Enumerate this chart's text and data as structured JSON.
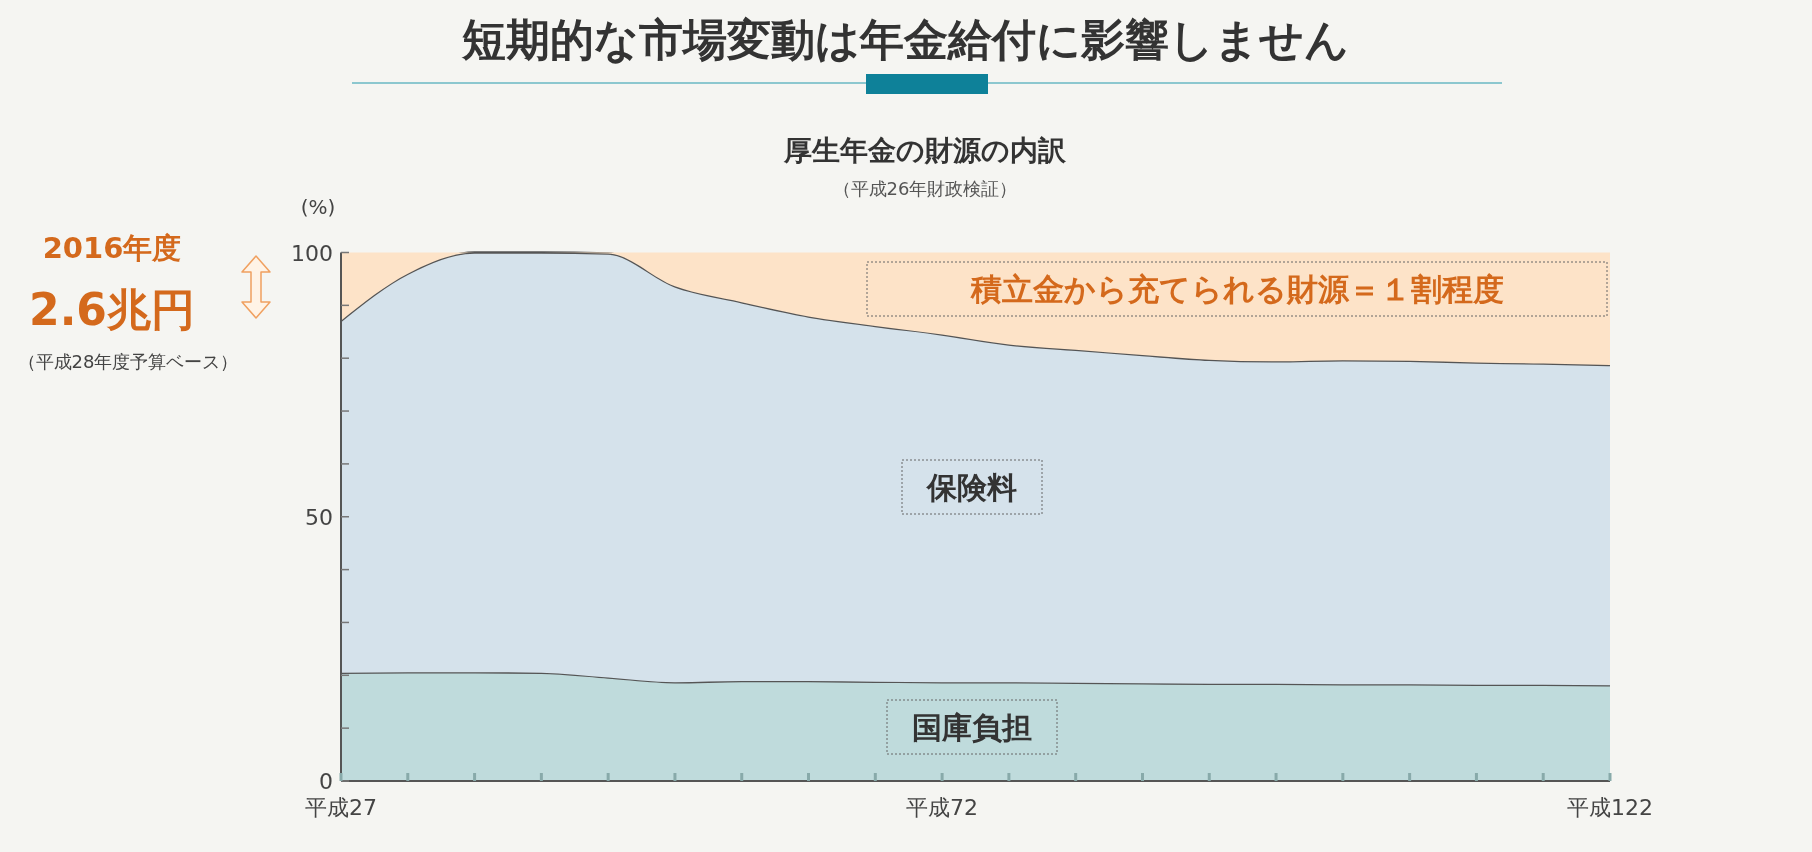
{
  "chart_data": {
    "type": "area",
    "stacked": true,
    "title": "短期的な市場変動は年金給付に影響しません",
    "subtitle": "厚生年金の財源の内訳",
    "ylabel": "(%)",
    "annotations": [
      "（平成26年財政検証）",
      "2016年度",
      "2.6兆円",
      "（平成28年度予算ベース）"
    ],
    "categories": [
      "平成27",
      null,
      null,
      null,
      null,
      null,
      null,
      null,
      null,
      "平成72",
      null,
      null,
      null,
      null,
      null,
      null,
      null,
      null,
      null,
      "平成122"
    ],
    "series": [
      {
        "name": "国庫負担",
        "color": "#bfdbdc",
        "values": [
          20.5,
          20.6,
          20.6,
          20.5,
          19.6,
          18.7,
          18.9,
          18.9,
          18.8,
          18.7,
          18.7,
          18.6,
          18.5,
          18.4,
          18.4,
          18.3,
          18.3,
          18.2,
          18.2,
          18.1
        ]
      },
      {
        "name": "保険料",
        "color": "#d5e2eb",
        "values": [
          66.6,
          75.4,
          79.4,
          79.5,
          80.2,
          74.9,
          71.7,
          69.0,
          67.3,
          65.8,
          63.9,
          63.0,
          62.1,
          61.3,
          61.0,
          61.3,
          61.2,
          61.0,
          60.8,
          60.6
        ]
      },
      {
        "name": "積立金から充てられる財源＝１割程度",
        "color": "#fde3c8",
        "values": [
          12.9,
          4,
          0,
          0,
          0.2,
          6.4,
          9.4,
          12.1,
          13.9,
          15.5,
          17.4,
          18.4,
          19.4,
          20.3,
          20.6,
          20.4,
          20.5,
          20.8,
          21,
          21.3
        ]
      }
    ],
    "ylim": [
      0,
      100
    ],
    "yticks": [
      0,
      {
        "value": 10,
        "label": null
      },
      {
        "value": 20,
        "label": null
      },
      {
        "value": 30,
        "label": null
      },
      {
        "value": 40,
        "label": null
      },
      50,
      {
        "value": 60,
        "label": null
      },
      {
        "value": 70,
        "label": null
      },
      {
        "value": 80,
        "label": null
      },
      {
        "value": 90,
        "label": null
      },
      100
    ],
    "legend": false
  }
}
